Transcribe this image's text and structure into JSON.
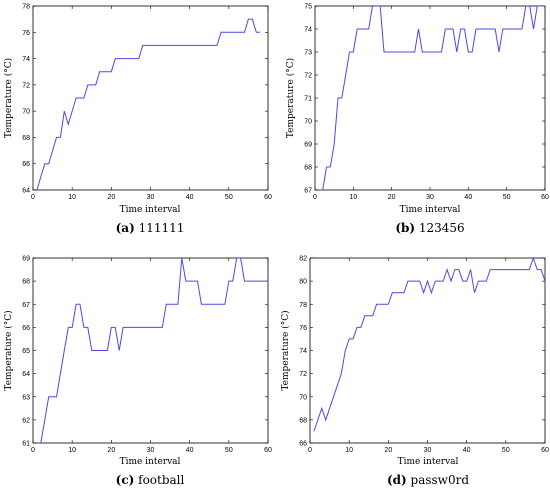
{
  "chart_data": [
    {
      "type": "line",
      "caption_letter": "(a)",
      "caption_text": "111111",
      "xlabel": "Time interval",
      "ylabel": "Temperature (°C)",
      "xlim": [
        0,
        60
      ],
      "ylim": [
        64,
        78
      ],
      "xticks": [
        0,
        10,
        20,
        30,
        40,
        50,
        60
      ],
      "yticks": [
        64,
        66,
        68,
        70,
        72,
        74,
        76,
        78
      ],
      "line_color": "#4a4ae8",
      "x": [
        1,
        2,
        3,
        4,
        5,
        6,
        7,
        8,
        9,
        10,
        11,
        12,
        13,
        14,
        15,
        16,
        17,
        18,
        19,
        20,
        21,
        22,
        23,
        24,
        25,
        26,
        27,
        28,
        29,
        30,
        35,
        40,
        45,
        47,
        48,
        50,
        52,
        54,
        55,
        56,
        57,
        58
      ],
      "y": [
        64,
        65,
        66,
        66,
        67,
        68,
        68,
        70,
        69,
        70,
        71,
        71,
        71,
        72,
        72,
        72,
        73,
        73,
        73,
        73,
        74,
        74,
        74,
        74,
        74,
        74,
        74,
        75,
        75,
        75,
        75,
        75,
        75,
        75,
        76,
        76,
        76,
        76,
        77,
        77,
        76,
        76
      ]
    },
    {
      "type": "line",
      "caption_letter": "(b)",
      "caption_text": "123456",
      "xlabel": "Time interval",
      "ylabel": "Temperature (°C)",
      "xlim": [
        0,
        60
      ],
      "ylim": [
        67,
        75
      ],
      "xticks": [
        0,
        10,
        20,
        30,
        40,
        50,
        60
      ],
      "yticks": [
        67,
        68,
        69,
        70,
        71,
        72,
        73,
        74,
        75
      ],
      "line_color": "#4a4ae8",
      "x": [
        1,
        2,
        3,
        4,
        5,
        6,
        7,
        8,
        9,
        10,
        11,
        12,
        13,
        14,
        15,
        16,
        17,
        18,
        20,
        22,
        24,
        26,
        27,
        28,
        30,
        32,
        33,
        34,
        35,
        36,
        37,
        38,
        39,
        40,
        41,
        42,
        43,
        45,
        47,
        48,
        49,
        50,
        52,
        54,
        55,
        56,
        57,
        58,
        59,
        60
      ],
      "y": [
        67,
        67,
        68,
        68,
        69,
        71,
        71,
        72,
        73,
        73,
        74,
        74,
        74,
        74,
        75,
        75,
        75,
        73,
        73,
        73,
        73,
        73,
        74,
        73,
        73,
        73,
        73,
        74,
        74,
        74,
        73,
        74,
        74,
        73,
        73,
        74,
        74,
        74,
        74,
        73,
        74,
        74,
        74,
        74,
        75,
        75,
        74,
        75,
        75,
        75
      ]
    },
    {
      "type": "line",
      "caption_letter": "(c)",
      "caption_text": "football",
      "xlabel": "Time interval",
      "ylabel": "Temperature (°C)",
      "xlim": [
        0,
        60
      ],
      "ylim": [
        61,
        69
      ],
      "xticks": [
        0,
        10,
        20,
        30,
        40,
        50,
        60
      ],
      "yticks": [
        61,
        62,
        63,
        64,
        65,
        66,
        67,
        68,
        69
      ],
      "line_color": "#4a4ae8",
      "x": [
        1,
        2,
        3,
        4,
        5,
        6,
        7,
        8,
        9,
        10,
        11,
        12,
        13,
        14,
        15,
        16,
        17,
        18,
        19,
        20,
        21,
        22,
        23,
        24,
        26,
        28,
        30,
        32,
        33,
        34,
        35,
        36,
        37,
        38,
        39,
        40,
        41,
        42,
        43,
        44,
        45,
        46,
        47,
        48,
        49,
        50,
        51,
        52,
        53,
        54,
        56,
        58,
        60
      ],
      "y": [
        61,
        61,
        62,
        63,
        63,
        63,
        64,
        65,
        66,
        66,
        67,
        67,
        66,
        66,
        65,
        65,
        65,
        65,
        65,
        66,
        66,
        65,
        66,
        66,
        66,
        66,
        66,
        66,
        66,
        67,
        67,
        67,
        67,
        69,
        68,
        68,
        68,
        68,
        67,
        67,
        67,
        67,
        67,
        67,
        67,
        68,
        68,
        69,
        69,
        68,
        68,
        68,
        68
      ]
    },
    {
      "type": "line",
      "caption_letter": "(d)",
      "caption_text": "passw0rd",
      "xlabel": "Time interval",
      "ylabel": "Temperature (°C)",
      "xlim": [
        0,
        60
      ],
      "ylim": [
        66,
        82
      ],
      "xticks": [
        0,
        10,
        20,
        30,
        40,
        50,
        60
      ],
      "yticks": [
        66,
        68,
        70,
        72,
        74,
        76,
        78,
        80,
        82
      ],
      "line_color": "#4a4ae8",
      "x": [
        1,
        2,
        3,
        4,
        5,
        6,
        7,
        8,
        9,
        10,
        11,
        12,
        13,
        14,
        15,
        16,
        17,
        18,
        19,
        20,
        21,
        22,
        23,
        24,
        25,
        26,
        27,
        28,
        29,
        30,
        31,
        32,
        33,
        34,
        35,
        36,
        37,
        38,
        39,
        40,
        41,
        42,
        43,
        44,
        45,
        46,
        47,
        48,
        50,
        52,
        54,
        56,
        57,
        58,
        59,
        60
      ],
      "y": [
        67,
        68,
        69,
        68,
        69,
        70,
        71,
        72,
        74,
        75,
        75,
        76,
        76,
        77,
        77,
        77,
        78,
        78,
        78,
        78,
        79,
        79,
        79,
        79,
        80,
        80,
        80,
        80,
        79,
        80,
        79,
        80,
        80,
        80,
        81,
        80,
        81,
        81,
        80,
        80,
        81,
        79,
        80,
        80,
        80,
        81,
        81,
        81,
        81,
        81,
        81,
        81,
        82,
        81,
        81,
        80
      ]
    }
  ]
}
